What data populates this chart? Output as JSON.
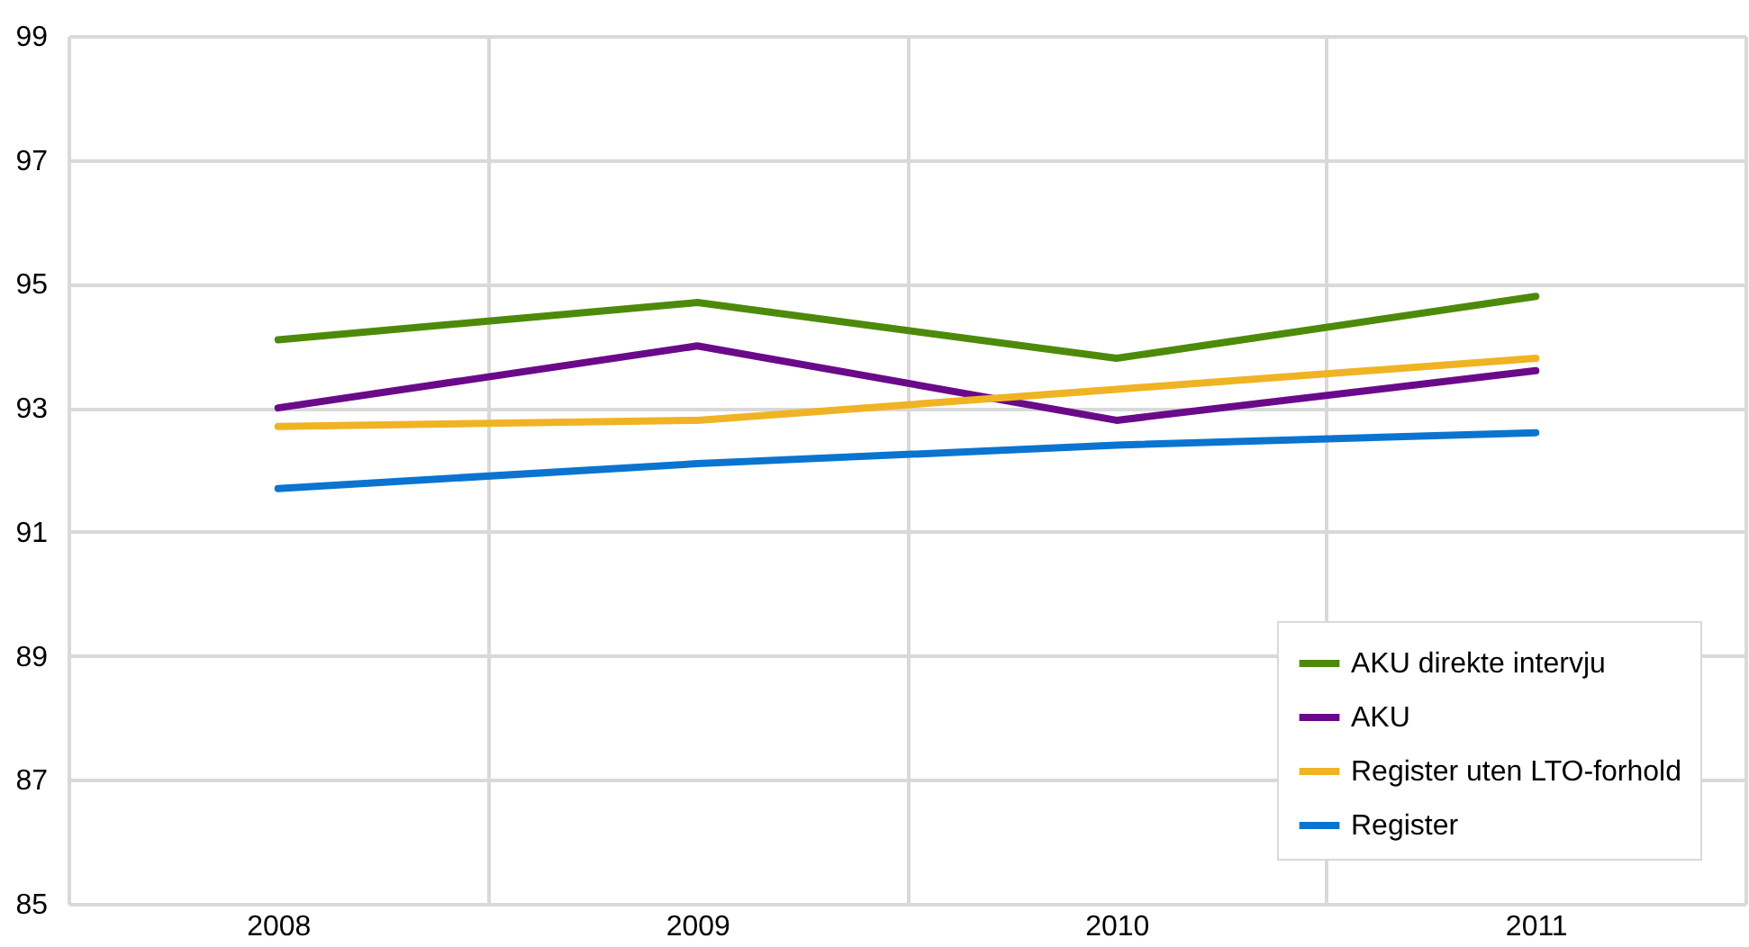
{
  "chart_data": {
    "type": "line",
    "categories": [
      "2008",
      "2009",
      "2010",
      "2011"
    ],
    "series": [
      {
        "name": "AKU direkte intervju",
        "color": "#4e8a0a",
        "values": [
          94.1,
          94.7,
          93.8,
          94.8
        ]
      },
      {
        "name": "AKU",
        "color": "#6a0a8a",
        "values": [
          93.0,
          94.0,
          92.8,
          93.6
        ]
      },
      {
        "name": "Register uten LTO-forhold",
        "color": "#f0b323",
        "values": [
          92.7,
          92.8,
          93.3,
          93.8
        ]
      },
      {
        "name": "Register",
        "color": "#0a74d0",
        "values": [
          91.7,
          92.1,
          92.4,
          92.6
        ]
      }
    ],
    "ylim": [
      85,
      99
    ],
    "yticks": [
      85,
      87,
      89,
      91,
      93,
      95,
      97,
      99
    ],
    "grid": true,
    "legend": "bottom right",
    "line_style": "solid",
    "marker": "none"
  }
}
